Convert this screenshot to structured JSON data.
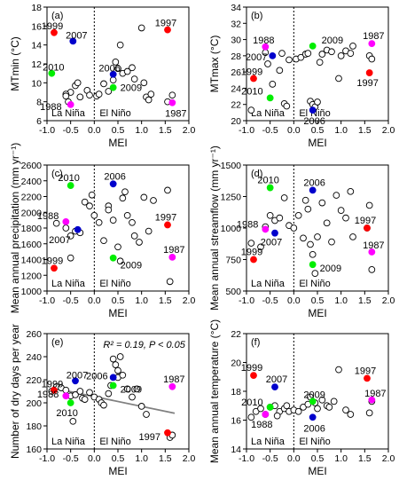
{
  "chart_data": [
    {
      "type": "scatter",
      "panel_label": "(a)",
      "ylabel": "MTmin (°C)",
      "xlabel": "MEI",
      "xlim": [
        -1.0,
        2.0
      ],
      "ylim": [
        6,
        18
      ],
      "yticks": [
        6,
        8,
        10,
        12,
        14,
        16,
        18
      ],
      "xticks": [
        -1.0,
        -0.5,
        0.0,
        0.5,
        1.0,
        1.5,
        2.0
      ],
      "region_labels": [
        "La Niña",
        "El Niño"
      ],
      "points": [
        [
          -0.4,
          9.7
        ],
        [
          -0.35,
          10.0
        ],
        [
          -0.5,
          9.0
        ],
        [
          -0.6,
          8.8
        ],
        [
          -0.55,
          8.0
        ],
        [
          -0.3,
          8.5
        ],
        [
          -0.15,
          9.2
        ],
        [
          -0.1,
          8.7
        ],
        [
          0.05,
          8.6
        ],
        [
          0.1,
          8.8
        ],
        [
          0.2,
          9.9
        ],
        [
          0.3,
          9.1
        ],
        [
          0.4,
          10.3
        ],
        [
          0.45,
          12.2
        ],
        [
          0.55,
          14.0
        ],
        [
          0.5,
          11.5
        ],
        [
          0.6,
          11.0
        ],
        [
          0.7,
          11.2
        ],
        [
          0.8,
          11.6
        ],
        [
          0.85,
          10.4
        ],
        [
          1.0,
          15.8
        ],
        [
          1.05,
          10.0
        ],
        [
          1.1,
          8.5
        ],
        [
          1.15,
          8.2
        ],
        [
          1.55,
          8.0
        ],
        [
          1.65,
          8.7
        ],
        [
          1.2,
          8.8
        ],
        [
          -0.6,
          8.6
        ]
      ],
      "highlights": [
        {
          "year": "1999",
          "x": -0.85,
          "y": 15.3,
          "color": "#ff0000"
        },
        {
          "year": "2007",
          "x": -0.45,
          "y": 14.4,
          "color": "#0000cc"
        },
        {
          "year": "2010",
          "x": -0.9,
          "y": 11.0,
          "color": "#00ee00"
        },
        {
          "year": "1988",
          "x": -0.5,
          "y": 7.7,
          "color": "#ff00ff"
        },
        {
          "year": "2006",
          "x": 0.4,
          "y": 10.9,
          "color": "#0000cc"
        },
        {
          "year": "2009",
          "x": 0.4,
          "y": 9.5,
          "color": "#00ee00"
        },
        {
          "year": "1997",
          "x": 1.55,
          "y": 15.6,
          "color": "#ff0000"
        },
        {
          "year": "1987",
          "x": 1.65,
          "y": 7.9,
          "color": "#ff00ff"
        }
      ]
    },
    {
      "type": "scatter",
      "panel_label": "(b)",
      "ylabel": "MTmax (°C)",
      "xlabel": "MEI",
      "xlim": [
        -1.0,
        2.0
      ],
      "ylim": [
        20,
        34
      ],
      "yticks": [
        20,
        22,
        24,
        26,
        28,
        30,
        32,
        34
      ],
      "xticks": [
        -1.0,
        -0.5,
        0.0,
        0.5,
        1.0,
        1.5,
        2.0
      ],
      "region_labels": [
        "La Niña",
        "El Niño"
      ],
      "points": [
        [
          -0.9,
          21.3
        ],
        [
          -0.6,
          28.4
        ],
        [
          -0.55,
          27.0
        ],
        [
          -0.45,
          24.5
        ],
        [
          -0.3,
          26.2
        ],
        [
          -0.2,
          22.1
        ],
        [
          -0.15,
          21.8
        ],
        [
          -0.1,
          27.5
        ],
        [
          0.05,
          27.6
        ],
        [
          0.15,
          27.8
        ],
        [
          0.25,
          28.2
        ],
        [
          0.35,
          22.4
        ],
        [
          0.4,
          22.0
        ],
        [
          0.45,
          21.7
        ],
        [
          0.5,
          22.3
        ],
        [
          0.55,
          27.2
        ],
        [
          0.6,
          28.2
        ],
        [
          0.7,
          28.7
        ],
        [
          0.8,
          28.5
        ],
        [
          1.0,
          28.0
        ],
        [
          1.1,
          28.6
        ],
        [
          1.2,
          28.3
        ],
        [
          1.25,
          29.2
        ],
        [
          1.6,
          28.0
        ],
        [
          1.65,
          27.6
        ],
        [
          0.95,
          25.2
        ],
        [
          -0.25,
          28.3
        ],
        [
          0.3,
          28.3
        ]
      ],
      "highlights": [
        {
          "year": "1988",
          "x": -0.6,
          "y": 29.1,
          "color": "#ff00ff"
        },
        {
          "year": "2007",
          "x": -0.45,
          "y": 28.0,
          "color": "#0000cc"
        },
        {
          "year": "1999",
          "x": -0.85,
          "y": 25.2,
          "color": "#ff0000"
        },
        {
          "year": "2010",
          "x": -0.5,
          "y": 22.8,
          "color": "#00ee00"
        },
        {
          "year": "2009",
          "x": 0.4,
          "y": 29.2,
          "color": "#00ee00"
        },
        {
          "year": "2006",
          "x": 0.4,
          "y": 21.3,
          "color": "#0000cc"
        },
        {
          "year": "1987",
          "x": 1.65,
          "y": 29.5,
          "color": "#ff00ff"
        },
        {
          "year": "1997",
          "x": 1.6,
          "y": 25.9,
          "color": "#ff0000"
        }
      ]
    },
    {
      "type": "scatter",
      "panel_label": "(c)",
      "ylabel": "Mean annual precipitation (mm yr⁻¹)",
      "xlabel": "MEI",
      "xlim": [
        -1.0,
        2.0
      ],
      "ylim": [
        1000,
        2600
      ],
      "yticks": [
        1000,
        1200,
        1400,
        1600,
        1800,
        2000,
        2200,
        2400,
        2600
      ],
      "xticks": [
        -1.0,
        -0.5,
        0.0,
        0.5,
        1.0,
        1.5,
        2.0
      ],
      "region_labels": [
        "La Niña",
        "El Niño"
      ],
      "points": [
        [
          -0.8,
          1860
        ],
        [
          -0.6,
          1800
        ],
        [
          -0.5,
          1700
        ],
        [
          -0.4,
          1760
        ],
        [
          -0.3,
          1740
        ],
        [
          -0.2,
          2130
        ],
        [
          -0.1,
          2080
        ],
        [
          0.0,
          1960
        ],
        [
          0.1,
          1870
        ],
        [
          0.2,
          1640
        ],
        [
          0.3,
          2080
        ],
        [
          0.4,
          1900
        ],
        [
          0.5,
          1560
        ],
        [
          0.55,
          1380
        ],
        [
          0.6,
          2180
        ],
        [
          0.7,
          1960
        ],
        [
          0.8,
          1870
        ],
        [
          0.85,
          1700
        ],
        [
          0.95,
          1620
        ],
        [
          1.05,
          2190
        ],
        [
          1.15,
          1760
        ],
        [
          1.25,
          2150
        ],
        [
          1.55,
          2280
        ],
        [
          1.6,
          1120
        ],
        [
          -0.05,
          2220
        ],
        [
          -0.5,
          1420
        ],
        [
          0.3,
          2030
        ],
        [
          0.65,
          2260
        ]
      ],
      "highlights": [
        {
          "year": "2010",
          "x": -0.5,
          "y": 2340,
          "color": "#00ee00"
        },
        {
          "year": "2006",
          "x": 0.4,
          "y": 2360,
          "color": "#0000cc"
        },
        {
          "year": "1988",
          "x": -0.6,
          "y": 1880,
          "color": "#ff00ff"
        },
        {
          "year": "2007",
          "x": -0.35,
          "y": 1780,
          "color": "#0000cc"
        },
        {
          "year": "1999",
          "x": -0.85,
          "y": 1290,
          "color": "#ff0000"
        },
        {
          "year": "2009",
          "x": 0.4,
          "y": 1420,
          "color": "#00ee00"
        },
        {
          "year": "1997",
          "x": 1.55,
          "y": 1840,
          "color": "#ff0000"
        },
        {
          "year": "1987",
          "x": 1.65,
          "y": 1430,
          "color": "#ff00ff"
        }
      ]
    },
    {
      "type": "scatter",
      "panel_label": "(d)",
      "ylabel": "Mean annual streamflow (mm yr⁻¹)",
      "xlabel": "MEI",
      "xlim": [
        -1.0,
        2.0
      ],
      "ylim": [
        500,
        1500
      ],
      "yticks": [
        500,
        750,
        1000,
        1250,
        1500
      ],
      "xticks": [
        -1.0,
        -0.5,
        0.0,
        0.5,
        1.0,
        1.5,
        2.0
      ],
      "region_labels": [
        "La Niña",
        "El Niño"
      ],
      "points": [
        [
          -0.9,
          880
        ],
        [
          -0.6,
          1010
        ],
        [
          -0.5,
          1100
        ],
        [
          -0.4,
          1060
        ],
        [
          -0.3,
          1080
        ],
        [
          -0.2,
          1240
        ],
        [
          -0.1,
          1020
        ],
        [
          0.0,
          1000
        ],
        [
          0.1,
          1100
        ],
        [
          0.2,
          920
        ],
        [
          0.3,
          1150
        ],
        [
          0.35,
          870
        ],
        [
          0.4,
          790
        ],
        [
          0.45,
          640
        ],
        [
          0.5,
          930
        ],
        [
          0.6,
          1200
        ],
        [
          0.7,
          1040
        ],
        [
          0.8,
          890
        ],
        [
          0.9,
          1260
        ],
        [
          1.0,
          1140
        ],
        [
          1.1,
          1080
        ],
        [
          1.2,
          1290
        ],
        [
          1.25,
          930
        ],
        [
          1.55,
          1000
        ],
        [
          1.6,
          1180
        ],
        [
          1.65,
          670
        ],
        [
          -0.7,
          850
        ],
        [
          0.25,
          1220
        ]
      ],
      "highlights": [
        {
          "year": "2010",
          "x": -0.5,
          "y": 1320,
          "color": "#00ee00"
        },
        {
          "year": "2006",
          "x": 0.4,
          "y": 1300,
          "color": "#0000cc"
        },
        {
          "year": "1988",
          "x": -0.6,
          "y": 990,
          "color": "#ff00ff"
        },
        {
          "year": "2007",
          "x": -0.4,
          "y": 960,
          "color": "#0000cc"
        },
        {
          "year": "1999",
          "x": -0.85,
          "y": 750,
          "color": "#ff0000"
        },
        {
          "year": "2009",
          "x": 0.4,
          "y": 710,
          "color": "#00ee00"
        },
        {
          "year": "1997",
          "x": 1.55,
          "y": 1000,
          "color": "#ff0000"
        },
        {
          "year": "1987",
          "x": 1.65,
          "y": 810,
          "color": "#ff00ff"
        }
      ]
    },
    {
      "type": "scatter",
      "panel_label": "(e)",
      "ylabel": "Number of dry days per year",
      "xlabel": "MEI",
      "xlim": [
        -1.0,
        2.0
      ],
      "ylim": [
        160,
        260
      ],
      "yticks": [
        160,
        180,
        200,
        220,
        240,
        260
      ],
      "xticks": [
        -1.0,
        -0.5,
        0.0,
        0.5,
        1.0,
        1.5,
        2.0
      ],
      "region_labels": [
        "La Niña",
        "El Niño"
      ],
      "annotation": "R² = 0.19,  P < 0.05",
      "trendline": {
        "x": [
          -0.9,
          1.7
        ],
        "y": [
          213.0,
          191.0
        ]
      },
      "points": [
        [
          -0.9,
          210
        ],
        [
          -0.8,
          214
        ],
        [
          -0.7,
          213
        ],
        [
          -0.6,
          211
        ],
        [
          -0.5,
          206
        ],
        [
          -0.4,
          207
        ],
        [
          -0.3,
          210
        ],
        [
          -0.25,
          204
        ],
        [
          -0.2,
          203
        ],
        [
          -0.1,
          209
        ],
        [
          0.0,
          205
        ],
        [
          0.1,
          203
        ],
        [
          0.15,
          200
        ],
        [
          0.2,
          198
        ],
        [
          0.3,
          208
        ],
        [
          0.35,
          215
        ],
        [
          0.4,
          238
        ],
        [
          0.45,
          233
        ],
        [
          0.5,
          228
        ],
        [
          0.5,
          222
        ],
        [
          0.55,
          240
        ],
        [
          0.6,
          224
        ],
        [
          0.7,
          212
        ],
        [
          0.8,
          205
        ],
        [
          0.9,
          212
        ],
        [
          1.0,
          197
        ],
        [
          1.1,
          190
        ],
        [
          1.6,
          170
        ],
        [
          1.65,
          172
        ],
        [
          -0.45,
          184
        ]
      ],
      "highlights": [
        {
          "year": "1999",
          "x": -0.85,
          "y": 211,
          "color": "#ff0000"
        },
        {
          "year": "2007",
          "x": -0.4,
          "y": 219,
          "color": "#0000cc"
        },
        {
          "year": "1988",
          "x": -0.6,
          "y": 206,
          "color": "#ff00ff"
        },
        {
          "year": "2010",
          "x": -0.5,
          "y": 200,
          "color": "#00ee00"
        },
        {
          "year": "2006",
          "x": 0.4,
          "y": 222,
          "color": "#0000cc"
        },
        {
          "year": "2009",
          "x": 0.4,
          "y": 215,
          "color": "#00ee00"
        },
        {
          "year": "1987",
          "x": 1.65,
          "y": 214,
          "color": "#ff00ff"
        },
        {
          "year": "1997",
          "x": 1.55,
          "y": 174,
          "color": "#ff0000"
        }
      ]
    },
    {
      "type": "scatter",
      "panel_label": "(f)",
      "ylabel": "Mean annual temperature (°C)",
      "xlabel": "MEI",
      "xlim": [
        -1.0,
        2.0
      ],
      "ylim": [
        14,
        22
      ],
      "yticks": [
        14,
        16,
        18,
        20,
        22
      ],
      "xticks": [
        -1.0,
        -0.5,
        0.0,
        0.5,
        1.0,
        1.5,
        2.0
      ],
      "region_labels": [
        "La Niña",
        "El Niño"
      ],
      "points": [
        [
          -0.9,
          16.2
        ],
        [
          -0.8,
          16.6
        ],
        [
          -0.7,
          16.8
        ],
        [
          -0.6,
          16.4
        ],
        [
          -0.5,
          16.9
        ],
        [
          -0.4,
          17.0
        ],
        [
          -0.3,
          16.6
        ],
        [
          -0.2,
          16.8
        ],
        [
          -0.1,
          16.6
        ],
        [
          0.0,
          16.7
        ],
        [
          0.1,
          16.6
        ],
        [
          0.2,
          16.9
        ],
        [
          0.3,
          17.1
        ],
        [
          0.45,
          17.2
        ],
        [
          0.5,
          16.8
        ],
        [
          0.6,
          17.4
        ],
        [
          0.7,
          17.0
        ],
        [
          0.75,
          16.9
        ],
        [
          0.85,
          17.3
        ],
        [
          0.95,
          19.5
        ],
        [
          1.1,
          16.7
        ],
        [
          1.2,
          16.4
        ],
        [
          1.6,
          16.5
        ],
        [
          1.65,
          17.3
        ],
        [
          -0.35,
          16.3
        ],
        [
          0.35,
          17.6
        ],
        [
          -0.15,
          17.0
        ]
      ],
      "highlights": [
        {
          "year": "1999",
          "x": -0.85,
          "y": 19.1,
          "color": "#ff0000"
        },
        {
          "year": "2007",
          "x": -0.4,
          "y": 18.3,
          "color": "#0000cc"
        },
        {
          "year": "2010",
          "x": -0.5,
          "y": 16.9,
          "color": "#00ee00"
        },
        {
          "year": "1988",
          "x": -0.6,
          "y": 16.4,
          "color": "#ff00ff"
        },
        {
          "year": "2009",
          "x": 0.4,
          "y": 17.3,
          "color": "#00ee00"
        },
        {
          "year": "2006",
          "x": 0.4,
          "y": 16.2,
          "color": "#0000cc"
        },
        {
          "year": "1997",
          "x": 1.55,
          "y": 18.9,
          "color": "#ff0000"
        },
        {
          "year": "1987",
          "x": 1.65,
          "y": 17.4,
          "color": "#ff00ff"
        }
      ]
    }
  ]
}
